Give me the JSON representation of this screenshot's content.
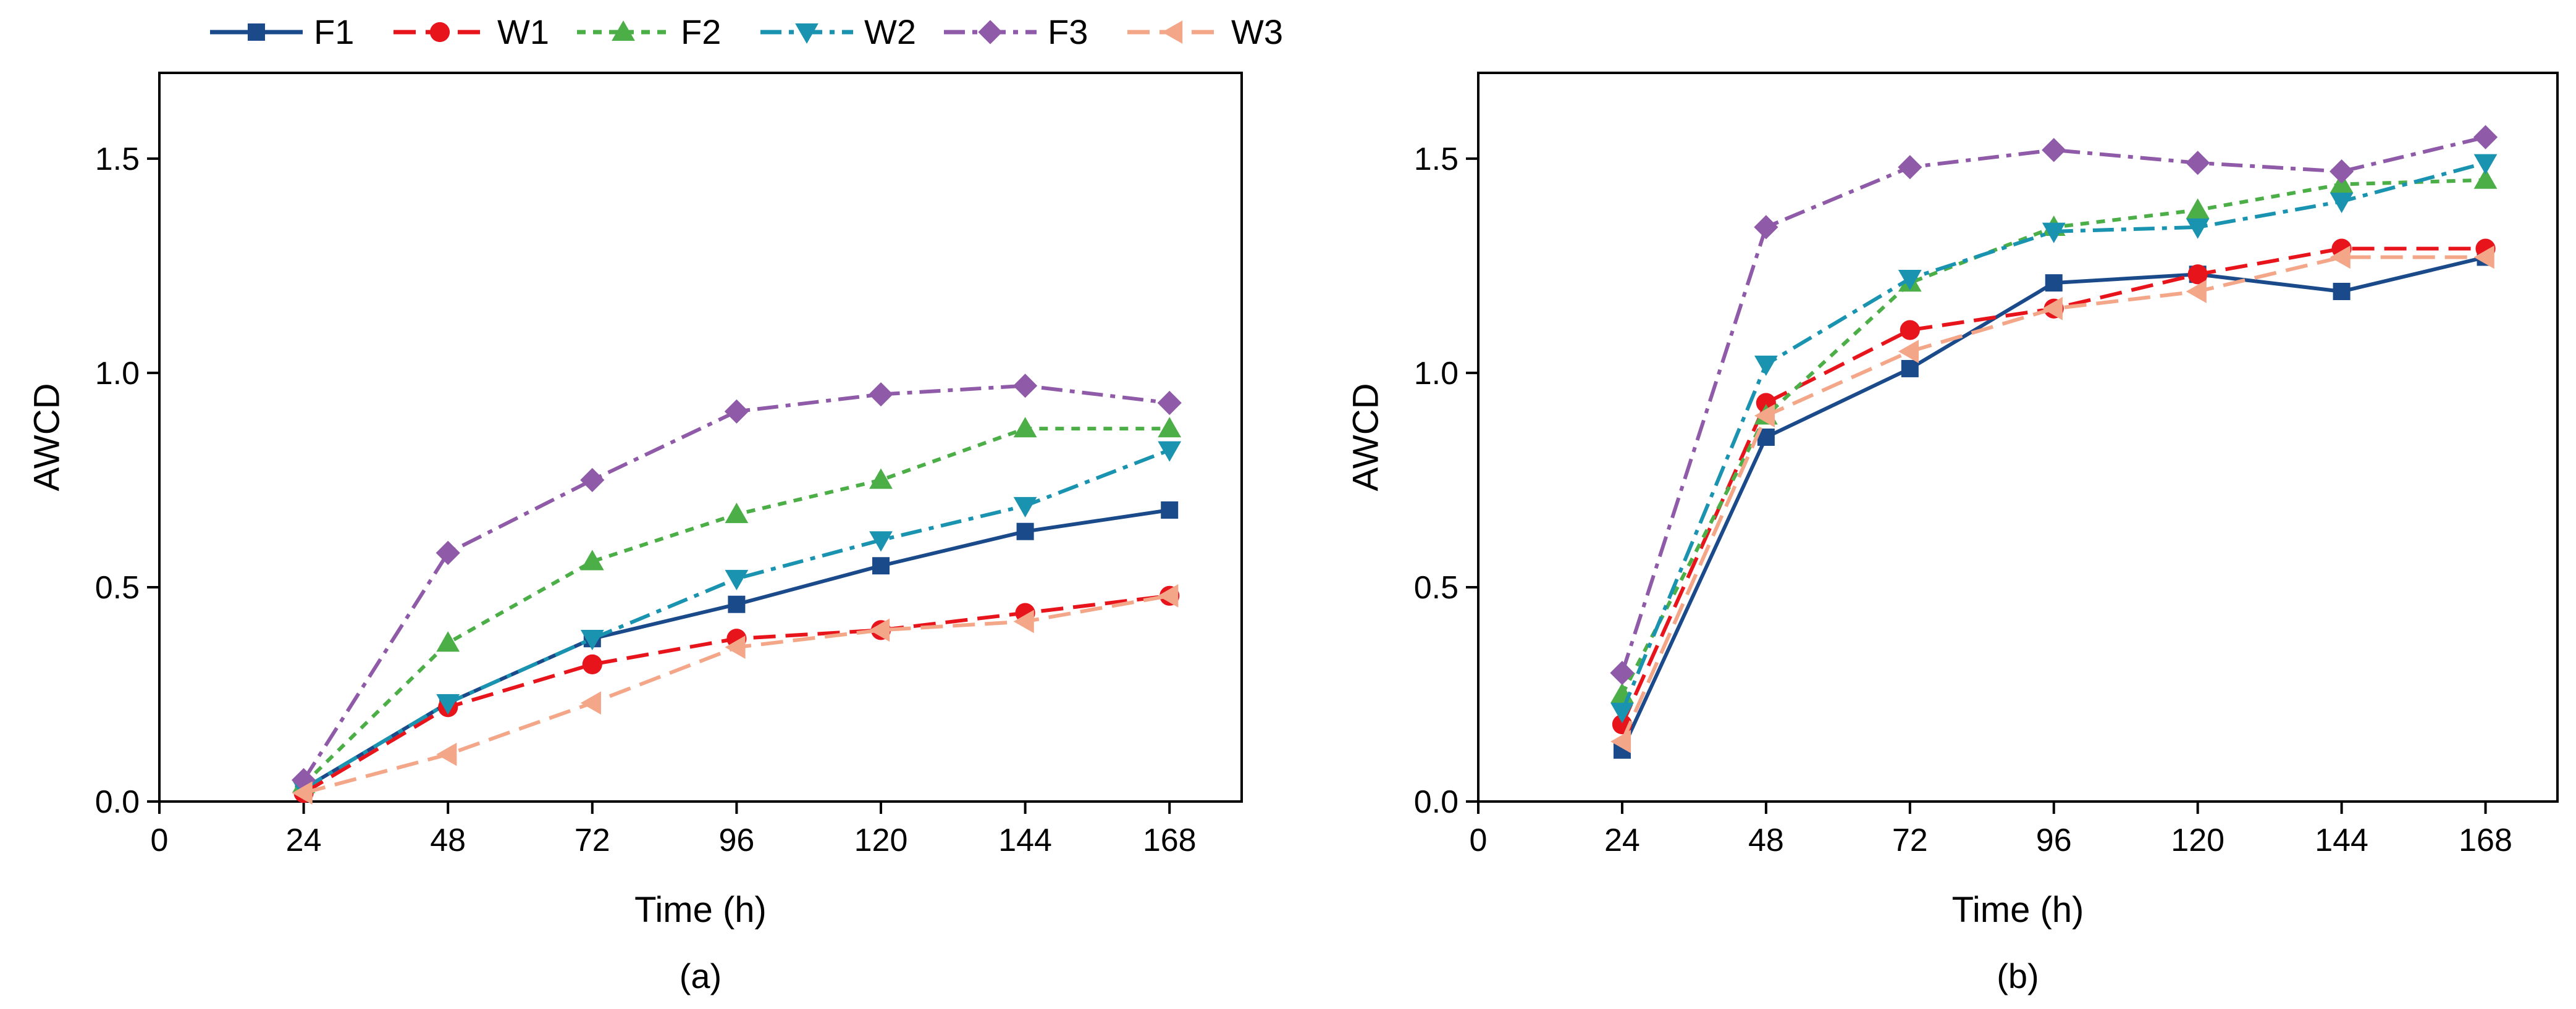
{
  "chart_data": {
    "type": "line",
    "legend": {
      "placement": "top-center",
      "entries": [
        {
          "name": "F1",
          "color": "#1a4a8a",
          "marker": "square",
          "dash": "solid"
        },
        {
          "name": "W1",
          "color": "#e8141c",
          "marker": "circle",
          "dash": "dashed"
        },
        {
          "name": "F2",
          "color": "#4cae47",
          "marker": "triangle-up",
          "dash": "dotted"
        },
        {
          "name": "W2",
          "color": "#1a93b0",
          "marker": "triangle-down",
          "dash": "dash-dot"
        },
        {
          "name": "F3",
          "color": "#8f5ba8",
          "marker": "diamond",
          "dash": "dash-dot"
        },
        {
          "name": "W3",
          "color": "#f4a688",
          "marker": "triangle-left",
          "dash": "dashed"
        }
      ]
    },
    "panels": [
      {
        "label": "(a)",
        "xlabel": "Time (h)",
        "ylabel": "AWCD",
        "xlim": [
          0,
          180
        ],
        "ylim": [
          0,
          1.7
        ],
        "xticks": [
          0,
          24,
          48,
          72,
          96,
          120,
          144,
          168
        ],
        "yticks": [
          0.0,
          0.5,
          1.0,
          1.5
        ],
        "ytick_labels": [
          "0.0",
          "0.5",
          "1.0",
          "1.5"
        ],
        "x": [
          24,
          48,
          72,
          96,
          120,
          144,
          168
        ],
        "series": [
          {
            "name": "F1",
            "values": [
              0.03,
              0.23,
              0.38,
              0.46,
              0.55,
              0.63,
              0.68
            ]
          },
          {
            "name": "W1",
            "values": [
              0.02,
              0.22,
              0.32,
              0.38,
              0.4,
              0.44,
              0.48
            ]
          },
          {
            "name": "F2",
            "values": [
              0.04,
              0.37,
              0.56,
              0.67,
              0.75,
              0.87,
              0.87
            ]
          },
          {
            "name": "W2",
            "values": [
              0.03,
              0.23,
              0.38,
              0.52,
              0.61,
              0.69,
              0.82
            ]
          },
          {
            "name": "F3",
            "values": [
              0.05,
              0.58,
              0.75,
              0.91,
              0.95,
              0.97,
              0.93
            ]
          },
          {
            "name": "W3",
            "values": [
              0.02,
              0.11,
              0.23,
              0.36,
              0.4,
              0.42,
              0.48
            ]
          }
        ]
      },
      {
        "label": "(b)",
        "xlabel": "Time (h)",
        "ylabel": "AWCD",
        "xlim": [
          0,
          180
        ],
        "ylim": [
          0,
          1.7
        ],
        "xticks": [
          0,
          24,
          48,
          72,
          96,
          120,
          144,
          168
        ],
        "yticks": [
          0.0,
          0.5,
          1.0,
          1.5
        ],
        "ytick_labels": [
          "0.0",
          "0.5",
          "1.0",
          "1.5"
        ],
        "x": [
          24,
          48,
          72,
          96,
          120,
          144,
          168
        ],
        "series": [
          {
            "name": "F1",
            "values": [
              0.12,
              0.85,
              1.01,
              1.21,
              1.23,
              1.19,
              1.27
            ]
          },
          {
            "name": "W1",
            "values": [
              0.18,
              0.93,
              1.1,
              1.15,
              1.23,
              1.29,
              1.29
            ]
          },
          {
            "name": "F2",
            "values": [
              0.25,
              0.9,
              1.21,
              1.34,
              1.38,
              1.44,
              1.45
            ]
          },
          {
            "name": "W2",
            "values": [
              0.21,
              1.02,
              1.22,
              1.33,
              1.34,
              1.4,
              1.49
            ]
          },
          {
            "name": "F3",
            "values": [
              0.3,
              1.34,
              1.48,
              1.52,
              1.49,
              1.47,
              1.55
            ]
          },
          {
            "name": "W3",
            "values": [
              0.14,
              0.9,
              1.05,
              1.15,
              1.19,
              1.27,
              1.27
            ]
          }
        ]
      }
    ]
  }
}
